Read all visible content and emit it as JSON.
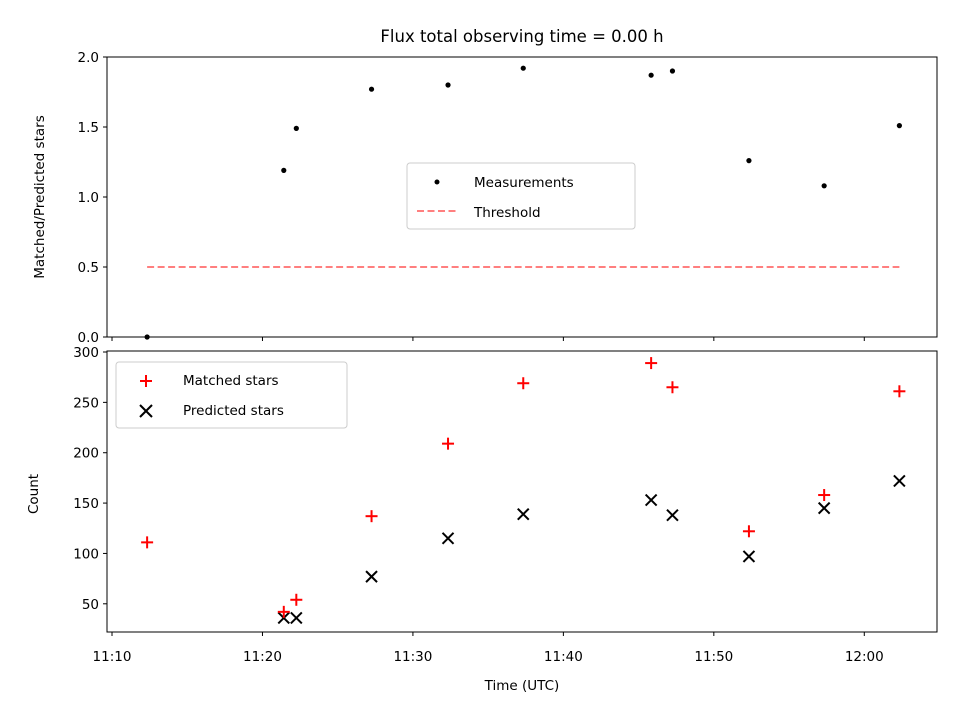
{
  "chart_data": [
    {
      "type": "scatter",
      "title": "Flux total observing time = 0.00 h",
      "xlabel": "",
      "ylabel": "Matched/Predicted stars",
      "ylim": [
        0,
        2.0
      ],
      "yticks": [
        "0.0",
        "0.5",
        "1.0",
        "1.5",
        "2.0"
      ],
      "grid": false,
      "legend_position": "center",
      "series": [
        {
          "name": "Measurements",
          "marker": "dot",
          "color": "#000000",
          "x": [
            "11:12:20",
            "11:21:25",
            "11:22:15",
            "11:27:15",
            "11:32:20",
            "11:37:20",
            "11:45:50",
            "11:47:15",
            "11:52:20",
            "11:57:20",
            "12:02:20"
          ],
          "y": [
            0.0,
            1.19,
            1.49,
            1.77,
            1.8,
            1.92,
            1.87,
            1.9,
            1.26,
            1.08,
            1.51
          ]
        },
        {
          "name": "Threshold",
          "style": "dashed-line",
          "color": "#ff7f7f",
          "x": [
            "11:12:20",
            "12:02:20"
          ],
          "y": [
            0.5,
            0.5
          ]
        }
      ]
    },
    {
      "type": "scatter",
      "xlabel": "Time (UTC)",
      "ylabel": "Count",
      "ylim": [
        22,
        301
      ],
      "yticks": [
        "50",
        "100",
        "150",
        "200",
        "250",
        "300"
      ],
      "xlim": [
        "11:09:40",
        "12:04:50"
      ],
      "xticks": [
        "11:10",
        "11:20",
        "11:30",
        "11:40",
        "11:50",
        "12:00"
      ],
      "grid": false,
      "legend_position": "upper left",
      "series": [
        {
          "name": "Matched stars",
          "marker": "plus",
          "color": "#ff0000",
          "x": [
            "11:12:20",
            "11:21:25",
            "11:22:15",
            "11:27:15",
            "11:32:20",
            "11:37:20",
            "11:45:50",
            "11:47:15",
            "11:52:20",
            "11:57:20",
            "12:02:20"
          ],
          "y": [
            111,
            42,
            54,
            137,
            209,
            269,
            289,
            265,
            122,
            158,
            261
          ]
        },
        {
          "name": "Predicted stars",
          "marker": "x",
          "color": "#000000",
          "x": [
            "11:12:20",
            "11:21:25",
            "11:22:15",
            "11:27:15",
            "11:32:20",
            "11:37:20",
            "11:45:50",
            "11:47:15",
            "11:52:20",
            "11:57:20",
            "12:02:20"
          ],
          "y": [
            null,
            36,
            36,
            77,
            115,
            139,
            153,
            138,
            97,
            145,
            172
          ]
        }
      ]
    }
  ]
}
